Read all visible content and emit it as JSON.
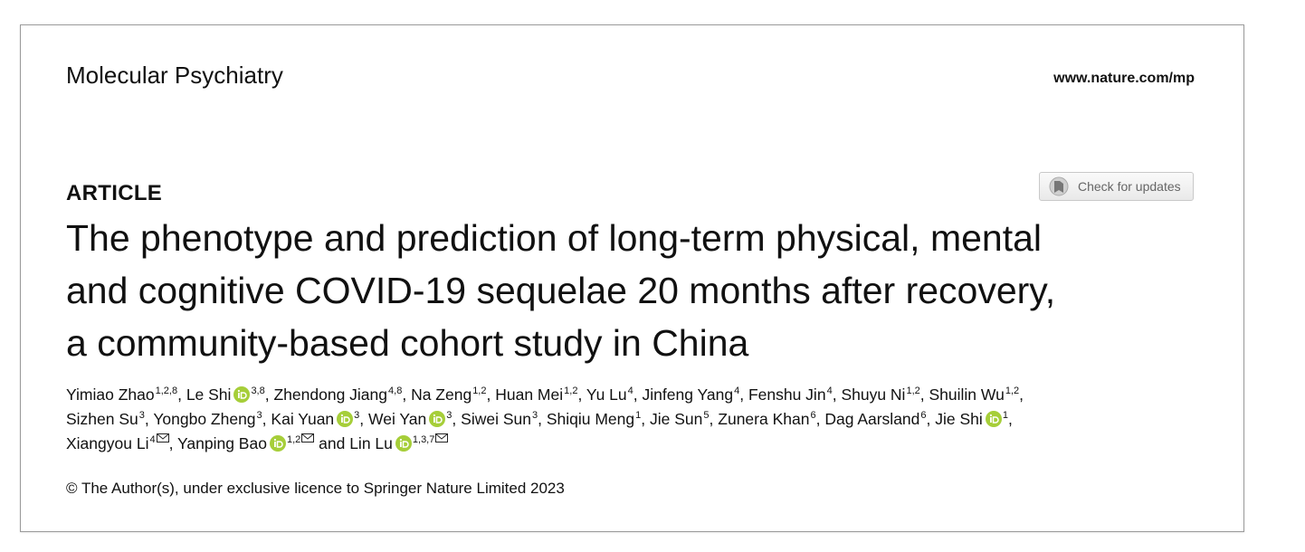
{
  "header": {
    "journal": "Molecular Psychiatry",
    "url": "www.nature.com/mp"
  },
  "article_type": "ARTICLE",
  "check_updates": "Check for updates",
  "title_lines": [
    "The phenotype and prediction of long-term physical, mental",
    "and cognitive COVID-19 sequelae 20 months after recovery,",
    "a community-based cohort study in China"
  ],
  "separator": ",",
  "conjunction": "and",
  "author_lines": [
    [
      {
        "name": "Yimiao Zhao",
        "affiliations": "1,2,8",
        "orcid": false,
        "corresponding": false
      },
      {
        "name": "Le Shi",
        "affiliations": "3,8",
        "orcid": true,
        "corresponding": false
      },
      {
        "name": "Zhendong Jiang",
        "affiliations": "4,8",
        "orcid": false,
        "corresponding": false
      },
      {
        "name": "Na Zeng",
        "affiliations": "1,2",
        "orcid": false,
        "corresponding": false
      },
      {
        "name": "Huan Mei",
        "affiliations": "1,2",
        "orcid": false,
        "corresponding": false
      },
      {
        "name": "Yu Lu",
        "affiliations": "4",
        "orcid": false,
        "corresponding": false
      },
      {
        "name": "Jinfeng Yang",
        "affiliations": "4",
        "orcid": false,
        "corresponding": false
      },
      {
        "name": "Fenshu Jin",
        "affiliations": "4",
        "orcid": false,
        "corresponding": false
      },
      {
        "name": "Shuyu Ni",
        "affiliations": "1,2",
        "orcid": false,
        "corresponding": false
      },
      {
        "name": "Shuilin Wu",
        "affiliations": "1,2",
        "orcid": false,
        "corresponding": false
      }
    ],
    [
      {
        "name": "Sizhen Su",
        "affiliations": "3",
        "orcid": false,
        "corresponding": false
      },
      {
        "name": "Yongbo Zheng",
        "affiliations": "3",
        "orcid": false,
        "corresponding": false
      },
      {
        "name": "Kai Yuan",
        "affiliations": "3",
        "orcid": true,
        "corresponding": false
      },
      {
        "name": "Wei Yan",
        "affiliations": "3",
        "orcid": true,
        "corresponding": false
      },
      {
        "name": "Siwei Sun",
        "affiliations": "3",
        "orcid": false,
        "corresponding": false
      },
      {
        "name": "Shiqiu Meng",
        "affiliations": "1",
        "orcid": false,
        "corresponding": false
      },
      {
        "name": "Jie Sun",
        "affiliations": "5",
        "orcid": false,
        "corresponding": false
      },
      {
        "name": "Zunera Khan",
        "affiliations": "6",
        "orcid": false,
        "corresponding": false
      },
      {
        "name": "Dag Aarsland",
        "affiliations": "6",
        "orcid": false,
        "corresponding": false
      },
      {
        "name": "Jie Shi",
        "affiliations": "1",
        "orcid": true,
        "corresponding": false
      }
    ],
    [
      {
        "name": "Xiangyou Li",
        "affiliations": "4",
        "orcid": false,
        "corresponding": true
      },
      {
        "name": "Yanping Bao",
        "affiliations": "1,2",
        "orcid": true,
        "corresponding": true
      },
      {
        "name": "Lin Lu",
        "affiliations": "1,3,7",
        "orcid": true,
        "corresponding": true
      }
    ]
  ],
  "copyright": "© The Author(s), under exclusive licence to Springer Nature Limited 2023"
}
